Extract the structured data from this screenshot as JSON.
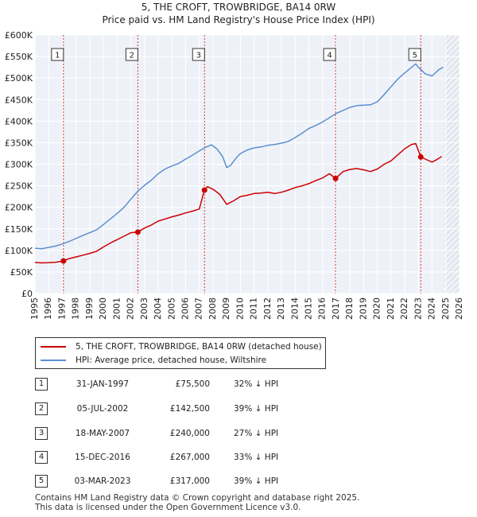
{
  "title_line1": "5, THE CROFT, TROWBRIDGE, BA14 0RW",
  "title_line2": "Price paid vs. HM Land Registry's House Price Index (HPI)",
  "chart_data": {
    "type": "line",
    "xlim": [
      1995,
      2026
    ],
    "ylim": [
      0,
      600000
    ],
    "y_ticks": [
      0,
      50000,
      100000,
      150000,
      200000,
      250000,
      300000,
      350000,
      400000,
      450000,
      500000,
      550000,
      600000
    ],
    "y_tick_labels": [
      "£0",
      "£50K",
      "£100K",
      "£150K",
      "£200K",
      "£250K",
      "£300K",
      "£350K",
      "£400K",
      "£450K",
      "£500K",
      "£550K",
      "£600K"
    ],
    "x_ticks": [
      1995,
      1996,
      1997,
      1998,
      1999,
      2000,
      2001,
      2002,
      2003,
      2004,
      2005,
      2006,
      2007,
      2008,
      2009,
      2010,
      2011,
      2012,
      2013,
      2014,
      2015,
      2016,
      2017,
      2018,
      2019,
      2020,
      2021,
      2022,
      2023,
      2024,
      2025,
      2026
    ],
    "x_tick_labels": [
      "1995",
      "1996",
      "1997",
      "1998",
      "1999",
      "2000",
      "2001",
      "2002",
      "2003",
      "2004",
      "2005",
      "2006",
      "2007",
      "2008",
      "2009",
      "2010",
      "2011",
      "2012",
      "2013",
      "2014",
      "2015",
      "2016",
      "2017",
      "2018",
      "2019",
      "2020",
      "2021",
      "2022",
      "2023",
      "2024",
      "2025",
      "2026"
    ],
    "grid": true,
    "hatched_future_from": 2024.9,
    "series": [
      {
        "name": "5, THE CROFT, TROWBRIDGE, BA14 0RW (detached house)",
        "color": "#cc0000",
        "x": [
          1995.0,
          1995.5,
          1996.0,
          1996.5,
          1997.08,
          1997.5,
          1998.0,
          1998.5,
          1999.0,
          1999.5,
          2000.0,
          2000.5,
          2001.0,
          2001.5,
          2002.0,
          2002.51,
          2003.0,
          2003.5,
          2004.0,
          2004.5,
          2005.0,
          2005.5,
          2006.0,
          2006.5,
          2007.0,
          2007.37,
          2007.6,
          2008.0,
          2008.5,
          2009.0,
          2009.5,
          2010.0,
          2010.5,
          2011.0,
          2011.5,
          2012.0,
          2012.5,
          2013.0,
          2013.5,
          2014.0,
          2014.5,
          2015.0,
          2015.5,
          2016.0,
          2016.5,
          2016.95,
          2017.5,
          2018.0,
          2018.5,
          2019.0,
          2019.5,
          2020.0,
          2020.5,
          2021.0,
          2021.5,
          2022.0,
          2022.5,
          2022.8,
          2023.17,
          2023.5,
          2024.0,
          2024.3,
          2024.7
        ],
        "y": [
          72000,
          71000,
          71500,
          72500,
          75500,
          81000,
          85000,
          89000,
          93000,
          98000,
          108000,
          117000,
          125000,
          133000,
          141000,
          142500,
          152000,
          159000,
          168000,
          173000,
          178000,
          182000,
          187000,
          191000,
          196000,
          240000,
          248000,
          242000,
          230000,
          207000,
          215000,
          225000,
          228000,
          232000,
          233000,
          235000,
          232000,
          235000,
          240000,
          246000,
          250000,
          255000,
          262000,
          268000,
          278000,
          267000,
          283000,
          288000,
          290000,
          287000,
          283000,
          289000,
          300000,
          308000,
          322000,
          336000,
          346000,
          348000,
          317000,
          312000,
          305000,
          310000,
          318000
        ]
      },
      {
        "name": "HPI: Average price, detached house, Wiltshire",
        "color": "#5b8fd0",
        "x": [
          1995.0,
          1995.5,
          1996.0,
          1996.5,
          1997.0,
          1997.5,
          1998.0,
          1998.5,
          1999.0,
          1999.5,
          2000.0,
          2000.5,
          2001.0,
          2001.5,
          2002.0,
          2002.5,
          2003.0,
          2003.5,
          2004.0,
          2004.5,
          2005.0,
          2005.5,
          2006.0,
          2006.5,
          2007.0,
          2007.5,
          2007.9,
          2008.3,
          2008.7,
          2009.0,
          2009.3,
          2009.7,
          2010.0,
          2010.5,
          2011.0,
          2011.5,
          2012.0,
          2012.5,
          2013.0,
          2013.5,
          2014.0,
          2014.5,
          2015.0,
          2015.5,
          2016.0,
          2016.5,
          2017.0,
          2017.5,
          2018.0,
          2018.5,
          2019.0,
          2019.5,
          2020.0,
          2020.5,
          2021.0,
          2021.5,
          2022.0,
          2022.5,
          2022.8,
          2023.0,
          2023.5,
          2024.0,
          2024.5,
          2024.8
        ],
        "y": [
          105000,
          104000,
          107000,
          110000,
          115000,
          121000,
          128000,
          135000,
          141000,
          148000,
          160000,
          173000,
          186000,
          200000,
          219000,
          237000,
          251000,
          263000,
          278000,
          289000,
          296000,
          302000,
          312000,
          321000,
          331000,
          340000,
          345000,
          335000,
          318000,
          292000,
          298000,
          315000,
          325000,
          333000,
          338000,
          340000,
          344000,
          346000,
          349000,
          353000,
          362000,
          372000,
          383000,
          390000,
          398000,
          408000,
          418000,
          425000,
          432000,
          436000,
          437000,
          438000,
          445000,
          462000,
          480000,
          498000,
          512000,
          525000,
          533000,
          525000,
          510000,
          505000,
          520000,
          525000
        ]
      }
    ],
    "sales": [
      {
        "n": "1",
        "x": 1997.08,
        "price": 75500
      },
      {
        "n": "2",
        "x": 2002.51,
        "price": 142500
      },
      {
        "n": "3",
        "x": 2007.38,
        "price": 240000
      },
      {
        "n": "4",
        "x": 2016.95,
        "price": 267000
      },
      {
        "n": "5",
        "x": 2023.17,
        "price": 317000
      }
    ]
  },
  "legend": {
    "property": "5, THE CROFT, TROWBRIDGE, BA14 0RW (detached house)",
    "hpi": "HPI: Average price, detached house, Wiltshire"
  },
  "rows": [
    {
      "n": "1",
      "date": "31-JAN-1997",
      "price": "£75,500",
      "hpi": "32% ↓ HPI"
    },
    {
      "n": "2",
      "date": "05-JUL-2002",
      "price": "£142,500",
      "hpi": "39% ↓ HPI"
    },
    {
      "n": "3",
      "date": "18-MAY-2007",
      "price": "£240,000",
      "hpi": "27% ↓ HPI"
    },
    {
      "n": "4",
      "date": "15-DEC-2016",
      "price": "£267,000",
      "hpi": "33% ↓ HPI"
    },
    {
      "n": "5",
      "date": "03-MAR-2023",
      "price": "£317,000",
      "hpi": "39% ↓ HPI"
    }
  ],
  "footer": {
    "line1": "Contains HM Land Registry data © Crown copyright and database right 2025.",
    "line2": "This data is licensed under the Open Government Licence v3.0."
  }
}
